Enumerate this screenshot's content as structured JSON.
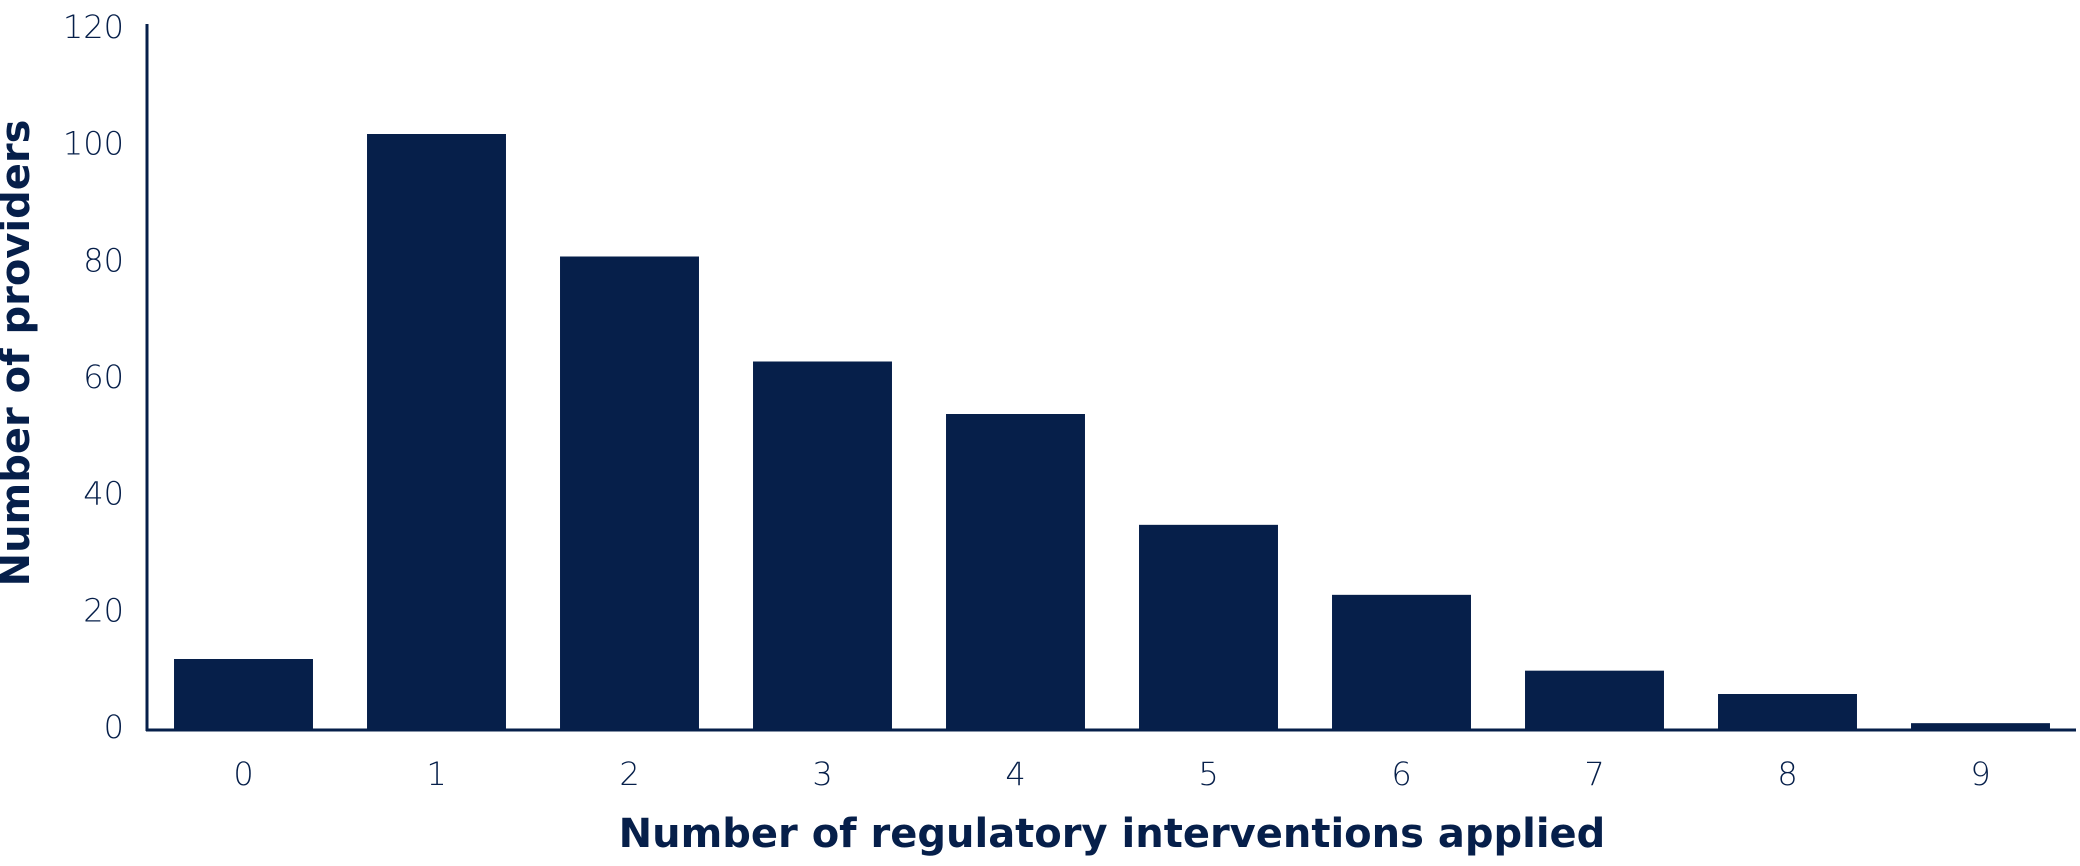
{
  "chart_data": {
    "type": "bar",
    "categories": [
      "0",
      "1",
      "2",
      "3",
      "4",
      "5",
      "6",
      "7",
      "8",
      "9"
    ],
    "values": [
      12,
      102,
      81,
      63,
      54,
      35,
      23,
      10,
      6,
      1
    ],
    "color": "#061f4a",
    "xlabel": "Number of regulatory interventions applied",
    "ylabel": "Number of providers",
    "ylim": [
      0,
      120
    ],
    "yticks": [
      0,
      20,
      40,
      60,
      80,
      100,
      120
    ],
    "grid": false
  }
}
